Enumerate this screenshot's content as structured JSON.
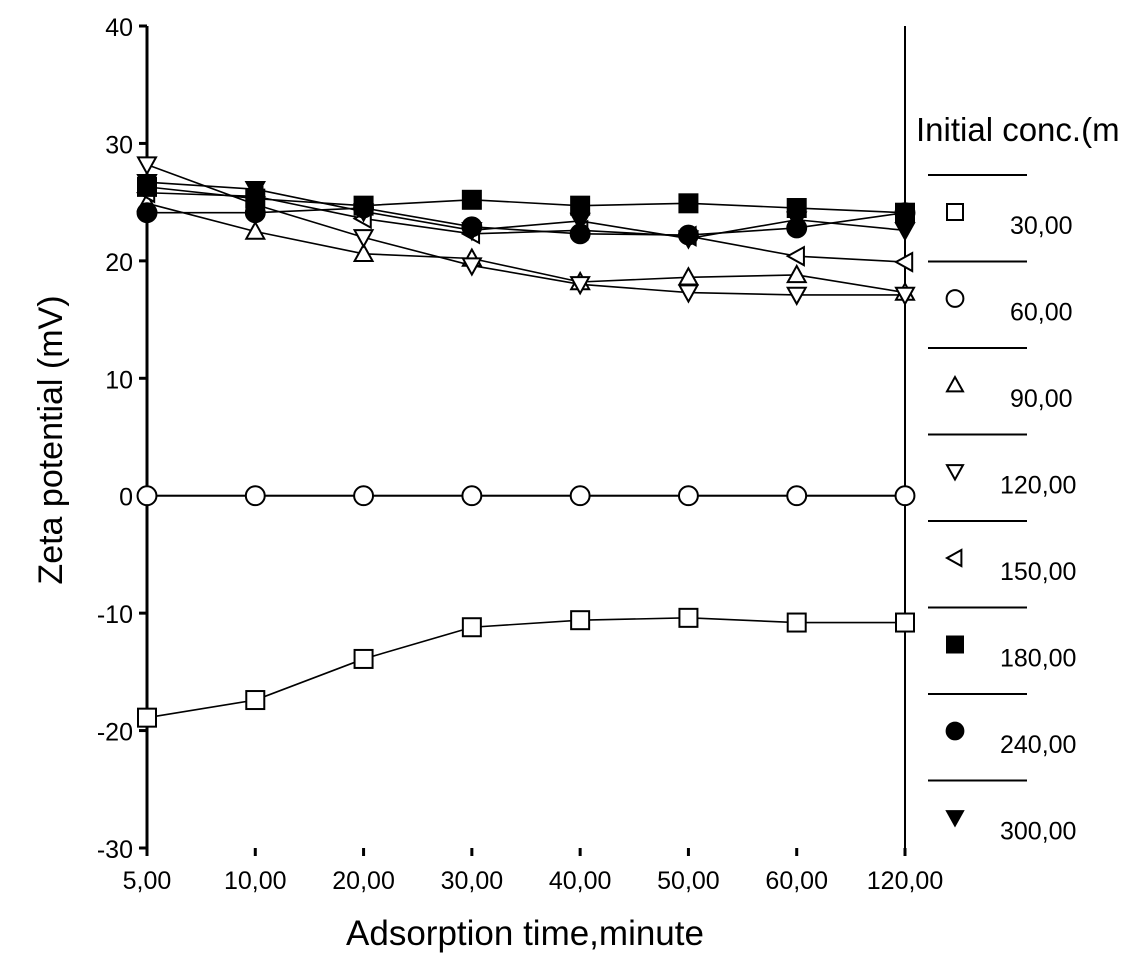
{
  "chart_data": {
    "type": "line",
    "title": "",
    "xlabel": "Adsorption time,minute",
    "ylabel": "Zeta potential (mV)",
    "categories": [
      "5,00",
      "10,00",
      "20,00",
      "30,00",
      "40,00",
      "50,00",
      "60,00",
      "120,00"
    ],
    "ylim": [
      -30,
      40
    ],
    "yticks": [
      "-30",
      "-20",
      "-10",
      "0",
      "10",
      "20",
      "30",
      "40"
    ],
    "grid": false,
    "legend_title": "Initial conc.(m",
    "legend_position": "right",
    "series": [
      {
        "name": "30,00",
        "marker": "square-open",
        "values": [
          -18.9,
          -17.4,
          -13.9,
          -11.2,
          -10.6,
          -10.4,
          -10.8,
          -10.8
        ]
      },
      {
        "name": "60,00",
        "marker": "circle-open",
        "values": [
          0,
          0,
          0,
          0,
          0,
          0,
          0,
          0
        ]
      },
      {
        "name": "90,00",
        "marker": "triangle-up-open",
        "values": [
          24.9,
          22.5,
          20.6,
          20.2,
          18.2,
          18.6,
          18.8,
          17.3
        ]
      },
      {
        "name": "120,00",
        "marker": "triangle-down-open",
        "values": [
          28.2,
          24.8,
          22.0,
          19.6,
          18.0,
          17.3,
          17.1,
          17.1
        ]
      },
      {
        "name": "150,00",
        "marker": "triangle-left-open",
        "values": [
          25.8,
          25.5,
          23.6,
          22.3,
          22.6,
          22.1,
          20.4,
          19.9
        ]
      },
      {
        "name": "180,00",
        "marker": "square-filled",
        "values": [
          26.3,
          25.3,
          24.7,
          25.2,
          24.7,
          24.9,
          24.5,
          24.1
        ]
      },
      {
        "name": "240,00",
        "marker": "circle-filled",
        "values": [
          24.1,
          24.1,
          24.5,
          22.9,
          22.3,
          22.2,
          22.8,
          24.1
        ]
      },
      {
        "name": "300,00",
        "marker": "triangle-down-filled",
        "values": [
          26.7,
          26.1,
          24.2,
          22.6,
          23.4,
          21.9,
          23.5,
          22.6
        ]
      }
    ]
  }
}
